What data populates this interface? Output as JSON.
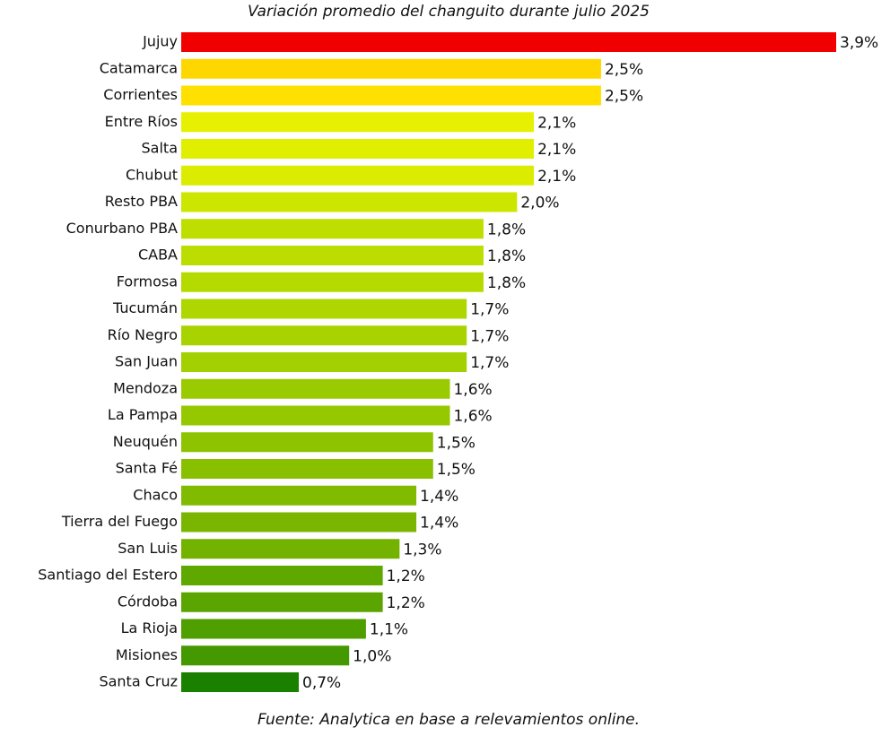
{
  "chart_data": {
    "type": "hbar",
    "title": "Variación promedio del changuito durante julio 2025",
    "categories": [
      "Jujuy",
      "Catamarca",
      "Corrientes",
      "Entre Ríos",
      "Salta",
      "Chubut",
      "Resto PBA",
      "Conurbano PBA",
      "CABA",
      "Formosa",
      "Tucumán",
      "Río Negro",
      "San Juan",
      "Mendoza",
      "La Pampa",
      "Neuquén",
      "Santa Fé",
      "Chaco",
      "Tierra del Fuego",
      "San Luis",
      "Santiago del Estero",
      "Córdoba",
      "La Rioja",
      "Misiones",
      "Santa Cruz"
    ],
    "values": [
      3.9,
      2.5,
      2.5,
      2.1,
      2.1,
      2.1,
      2.0,
      1.8,
      1.8,
      1.8,
      1.7,
      1.7,
      1.7,
      1.6,
      1.6,
      1.5,
      1.5,
      1.4,
      1.4,
      1.3,
      1.2,
      1.2,
      1.1,
      1.0,
      0.7
    ],
    "value_labels": [
      "3,9%",
      "2,5%",
      "2,5%",
      "2,1%",
      "2,1%",
      "2,1%",
      "2,0%",
      "1,8%",
      "1,8%",
      "1,8%",
      "1,7%",
      "1,7%",
      "1,7%",
      "1,6%",
      "1,6%",
      "1,5%",
      "1,5%",
      "1,4%",
      "1,4%",
      "1,3%",
      "1,2%",
      "1,2%",
      "1,1%",
      "1,0%",
      "0,7%"
    ],
    "colors": [
      "#f00000",
      "#ffd700",
      "#ffe000",
      "#e6f000",
      "#e0ef00",
      "#dcec00",
      "#cce600",
      "#bede00",
      "#bbdd00",
      "#b5da00",
      "#aed600",
      "#a8d300",
      "#a3d000",
      "#99cb00",
      "#96c800",
      "#8ec300",
      "#88c000",
      "#80bb00",
      "#7ab600",
      "#74b200",
      "#5fa800",
      "#5aa500",
      "#4f9f00",
      "#449800",
      "#1a8000"
    ],
    "source": "Fuente: Analytica en base a relevamientos online."
  }
}
